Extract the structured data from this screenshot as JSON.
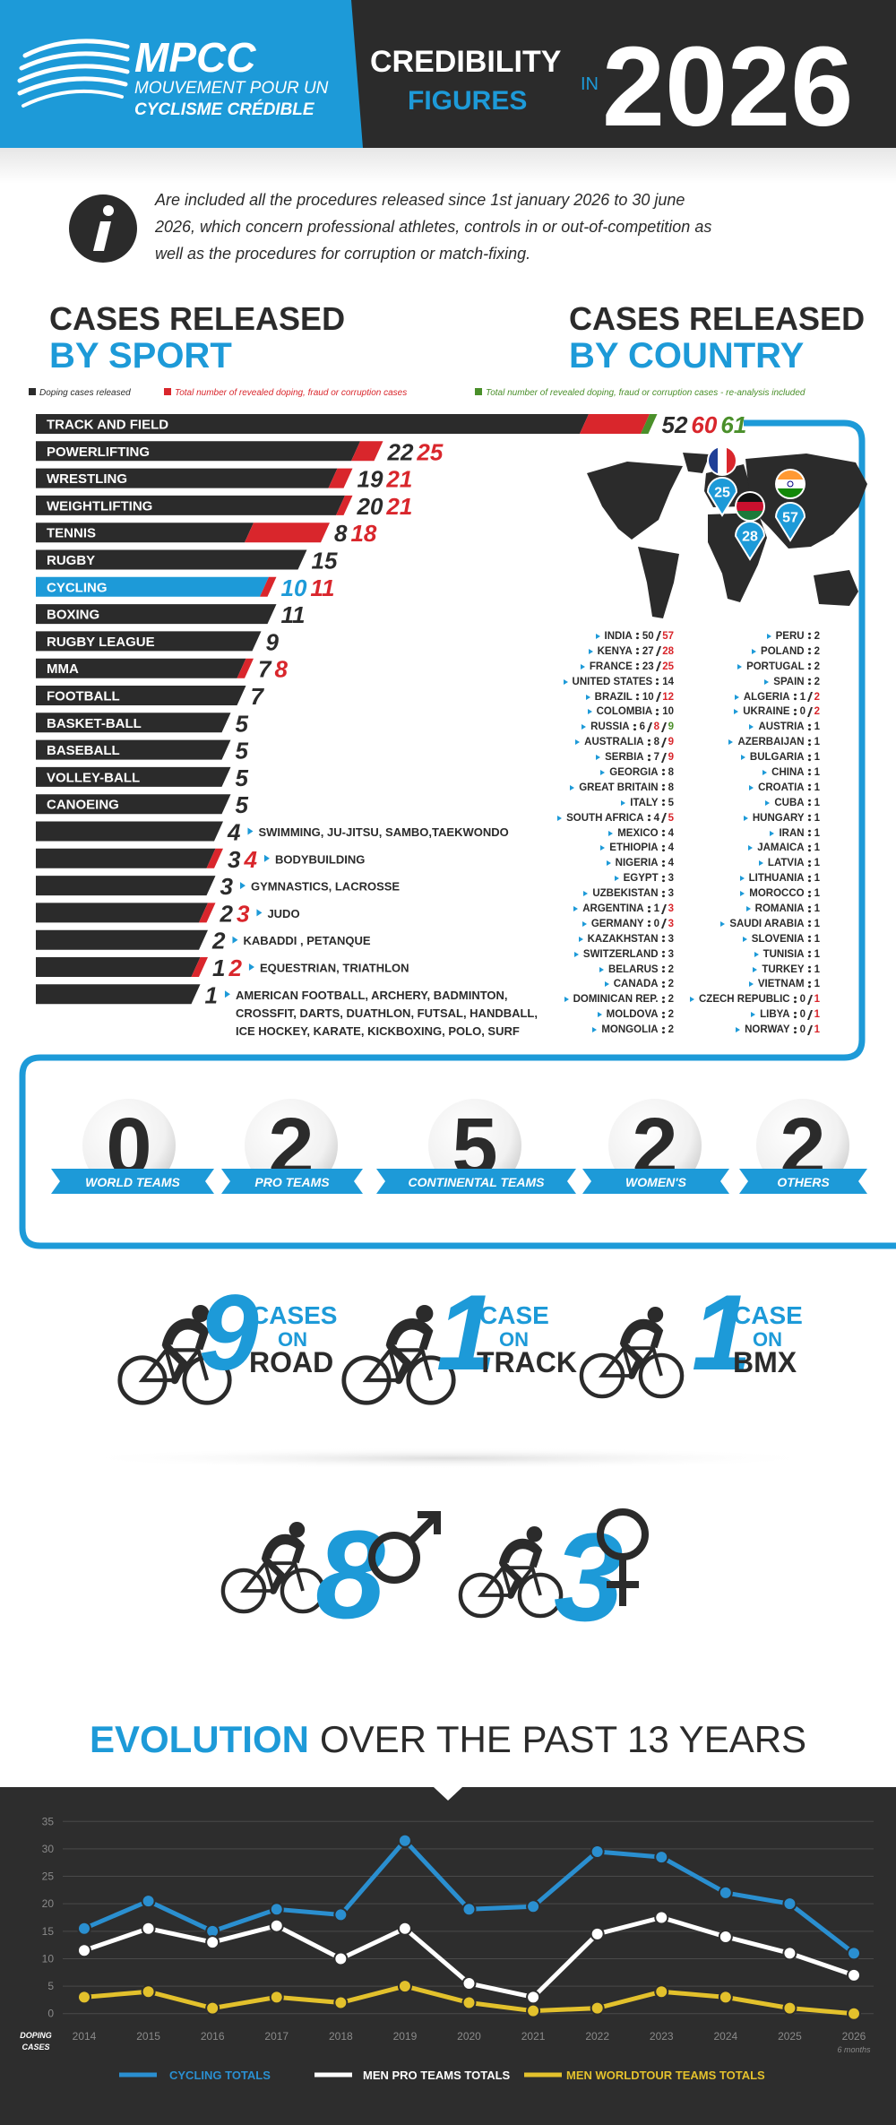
{
  "header": {
    "brand": "MPCC",
    "brand_line1": "MOUVEMENT POUR UN",
    "brand_line2": "CYCLISME CRÉDIBLE",
    "title_line1": "CREDIBILITY",
    "title_line2": "FIGURES",
    "title_in": "IN",
    "year": "2026"
  },
  "info_lines": [
    "Are included all the procedures released since 1st january 2026 to 30 june",
    "2026, which concern professional athletes, controls in or out-of-competition as",
    "well as the procedures for corruption or match-fixing."
  ],
  "sport_heading": {
    "line1": "CASES RELEASED",
    "line2": "BY SPORT"
  },
  "country_heading": {
    "line1": "CASES RELEASED",
    "line2": "BY COUNTRY"
  },
  "legend": [
    {
      "label": "Doping cases released",
      "color": "#2b2b2b"
    },
    {
      "label": "Total number of revealed doping, fraud or corruption cases",
      "color": "#d9262c"
    },
    {
      "label": "Total number of revealed doping, fraud or corruption cases - re-analysis included",
      "color": "#4a8f2a"
    }
  ],
  "sports": [
    {
      "name": "TRACK AND FIELD",
      "doping": 52,
      "total": 60,
      "reanalysis": 61
    },
    {
      "name": "POWERLIFTING",
      "doping": 22,
      "total": 25
    },
    {
      "name": "WRESTLING",
      "doping": 19,
      "total": 21
    },
    {
      "name": "WEIGHTLIFTING",
      "doping": 20,
      "total": 21
    },
    {
      "name": "TENNIS",
      "doping": 8,
      "total": 18
    },
    {
      "name": "RUGBY",
      "doping": 15
    },
    {
      "name": "CYCLING",
      "doping": 10,
      "total": 11,
      "color": "#1d9ad8"
    },
    {
      "name": "BOXING",
      "doping": 11
    },
    {
      "name": "RUGBY LEAGUE",
      "doping": 9
    },
    {
      "name": "MMA",
      "doping": 7,
      "total": 8
    },
    {
      "name": "FOOTBALL",
      "doping": 7
    },
    {
      "name": "BASKET-BALL",
      "doping": 5
    },
    {
      "name": "BASEBALL",
      "doping": 5
    },
    {
      "name": "VOLLEY-BALL",
      "doping": 5
    },
    {
      "name": "CANOEING",
      "doping": 5
    }
  ],
  "other_sports": [
    {
      "names": [
        "SWIMMING, JU-JITSU, SAMBO,TAEKWONDO"
      ],
      "doping": 4
    },
    {
      "names": [
        "BODYBUILDING"
      ],
      "doping": 3,
      "total": 4
    },
    {
      "names": [
        "GYMNASTICS, LACROSSE"
      ],
      "doping": 3
    },
    {
      "names": [
        "JUDO"
      ],
      "doping": 2,
      "total": 3
    },
    {
      "names": [
        "KABADDI , PETANQUE"
      ],
      "doping": 2
    },
    {
      "names": [
        "EQUESTRIAN, TRIATHLON"
      ],
      "doping": 1,
      "total": 2
    },
    {
      "names": [
        "AMERICAN FOOTBALL, ARCHERY, BADMINTON,",
        "CROSSFIT, DARTS, DUATHLON, FUTSAL, HANDBALL,",
        "ICE HOCKEY, KARATE, KICKBOXING, POLO, SURF"
      ],
      "doping": 1
    }
  ],
  "countries": [
    {
      "name": "INDIA",
      "cases": 50,
      "total": 57
    },
    {
      "name": "KENYA",
      "cases": 27,
      "total": 28
    },
    {
      "name": "FRANCE",
      "cases": 23,
      "total": 25
    },
    {
      "name": "UNITED STATES",
      "cases": 14
    },
    {
      "name": "BRAZIL",
      "cases": 10,
      "total": 12
    },
    {
      "name": "COLOMBIA",
      "cases": 10
    },
    {
      "name": "RUSSIA",
      "cases": 6,
      "total": 8,
      "reanalysis": 9
    },
    {
      "name": "AUSTRALIA",
      "cases": 8,
      "total": 9
    },
    {
      "name": "SERBIA",
      "cases": 7,
      "total": 9
    },
    {
      "name": "GEORGIA",
      "cases": 8
    },
    {
      "name": "GREAT BRITAIN",
      "cases": 8
    },
    {
      "name": "ITALY",
      "cases": 5
    },
    {
      "name": "SOUTH AFRICA",
      "cases": 4,
      "total": 5
    },
    {
      "name": "MEXICO",
      "cases": 4
    },
    {
      "name": "ETHIOPIA",
      "cases": 4
    },
    {
      "name": "NIGERIA",
      "cases": 4
    },
    {
      "name": "EGYPT",
      "cases": 3
    },
    {
      "name": "UZBEKISTAN",
      "cases": 3
    },
    {
      "name": "ARGENTINA",
      "cases": 1,
      "total": 3
    },
    {
      "name": "GERMANY",
      "cases": 0,
      "total": 3
    },
    {
      "name": "KAZAKHSTAN",
      "cases": 3
    },
    {
      "name": "SWITZERLAND",
      "cases": 3
    },
    {
      "name": "BELARUS",
      "cases": 2
    },
    {
      "name": "CANADA",
      "cases": 2
    },
    {
      "name": "DOMINICAN REP.",
      "cases": 2
    },
    {
      "name": "MOLDOVA",
      "cases": 2
    },
    {
      "name": "MONGOLIA",
      "cases": 2
    },
    {
      "name": "PERU",
      "cases": 2
    },
    {
      "name": "POLAND",
      "cases": 2
    },
    {
      "name": "PORTUGAL",
      "cases": 2
    },
    {
      "name": "SPAIN",
      "cases": 2
    },
    {
      "name": "ALGERIA",
      "cases": 1,
      "total": 2
    },
    {
      "name": "UKRAINE",
      "cases": 0,
      "total": 2
    },
    {
      "name": "AUSTRIA",
      "cases": 1
    },
    {
      "name": "AZERBAIJAN",
      "cases": 1
    },
    {
      "name": "BULGARIA",
      "cases": 1
    },
    {
      "name": "CHINA",
      "cases": 1
    },
    {
      "name": "CROATIA",
      "cases": 1
    },
    {
      "name": "CUBA",
      "cases": 1
    },
    {
      "name": "HUNGARY",
      "cases": 1
    },
    {
      "name": "IRAN",
      "cases": 1
    },
    {
      "name": "JAMAICA",
      "cases": 1
    },
    {
      "name": "LATVIA",
      "cases": 1
    },
    {
      "name": "LITHUANIA",
      "cases": 1
    },
    {
      "name": "MOROCCO",
      "cases": 1
    },
    {
      "name": "ROMANIA",
      "cases": 1
    },
    {
      "name": "SAUDI ARABIA",
      "cases": 1
    },
    {
      "name": "SLOVENIA",
      "cases": 1
    },
    {
      "name": "TUNISIA",
      "cases": 1
    },
    {
      "name": "TURKEY",
      "cases": 1
    },
    {
      "name": "VIETNAM",
      "cases": 1
    },
    {
      "name": "CZECH REPUBLIC",
      "cases": 0,
      "total": 1
    },
    {
      "name": "LIBYA",
      "cases": 0,
      "total": 1
    },
    {
      "name": "NORWAY",
      "cases": 0,
      "total": 1
    }
  ],
  "teams": [
    {
      "label": "WORLD TEAMS",
      "value": 0
    },
    {
      "label": "PRO TEAMS",
      "value": 2
    },
    {
      "label": "CONTINENTAL TEAMS",
      "value": 5
    },
    {
      "label": "WOMEN'S",
      "value": 2
    },
    {
      "label": "OTHERS",
      "value": 2
    }
  ],
  "disciplines": [
    {
      "value": 9,
      "unit": "CASES",
      "preposition": "ON",
      "place": "ROAD"
    },
    {
      "value": 1,
      "unit": "CASE",
      "preposition": "ON",
      "place": "TRACK"
    },
    {
      "value": 1,
      "unit": "CASE",
      "preposition": "ON",
      "place": "BMX"
    }
  ],
  "gender": {
    "men": 8,
    "women": 3
  },
  "evolution_heading": {
    "highlight": "EVOLUTION",
    "rest": "OVER THE PAST 13 YEARS"
  },
  "chart_data": {
    "type": "line",
    "categories": [
      "2014",
      "2015",
      "2016",
      "2017",
      "2018",
      "2019",
      "2020",
      "2021",
      "2022",
      "2023",
      "2024",
      "2025",
      "2026"
    ],
    "category_note": "6 months",
    "y_label_lines": [
      "DOPING",
      "CASES"
    ],
    "ylim": [
      -2,
      37
    ],
    "yticks": [
      0,
      5,
      10,
      15,
      20,
      25,
      30,
      35
    ],
    "grid": true,
    "series": [
      {
        "name": "CYCLING TOTALS",
        "color": "#2a8fd0",
        "values": [
          15.5,
          20.5,
          15,
          19,
          18,
          31.5,
          19,
          19.5,
          29.5,
          28.5,
          22,
          20,
          11
        ]
      },
      {
        "name": "MEN PRO TEAMS TOTALS",
        "color": "#ffffff",
        "values": [
          11.5,
          15.5,
          13,
          16,
          10,
          15.5,
          5.5,
          3,
          14.5,
          17.5,
          14,
          11,
          7
        ]
      },
      {
        "name": "MEN WORLDTOUR TEAMS TOTALS",
        "color": "#e3c12c",
        "values": [
          3,
          4,
          1,
          3,
          2,
          5,
          2,
          0.5,
          1,
          4,
          3,
          1,
          0
        ]
      }
    ]
  }
}
